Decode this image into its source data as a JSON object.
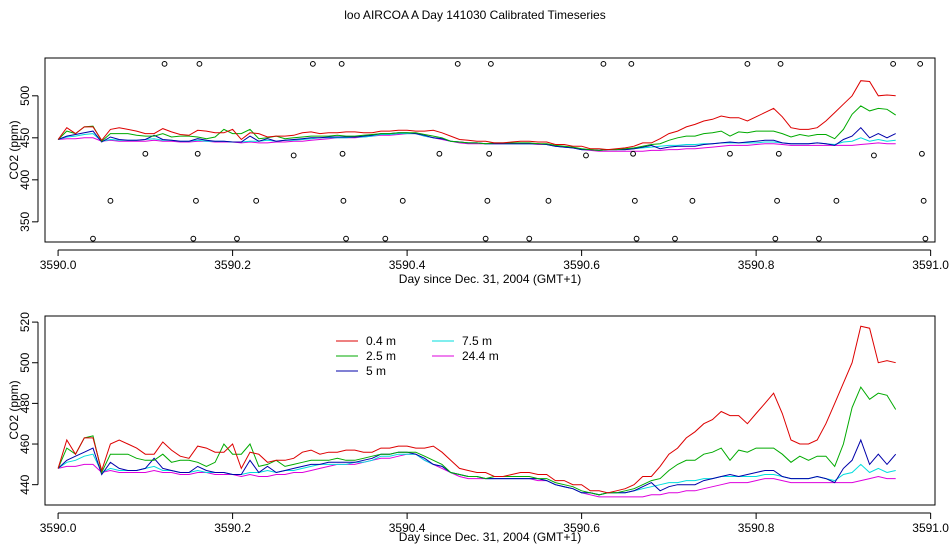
{
  "title": "loo AIRCOA A  Day 141030  Calibrated Timeseries",
  "chart_data": [
    {
      "type": "line",
      "panel": "top",
      "xlabel": "Day since Dec. 31, 2004 (GMT+1)",
      "ylabel": "CO2 (ppm)",
      "xlim": [
        3589.985,
        3591.005
      ],
      "ylim": [
        326,
        545
      ],
      "xticks": [
        3590.0,
        3590.2,
        3590.4,
        3590.6,
        3590.8,
        3591.0
      ],
      "xtick_labels": [
        "3590.0",
        "3590.2",
        "3590.4",
        "3590.6",
        "3590.8",
        "3591.0"
      ],
      "yticks": [
        350,
        400,
        450,
        500
      ],
      "ytick_labels": [
        "350",
        "400",
        "450",
        "500"
      ],
      "series_ref": "shared",
      "markers": {
        "style": "open-circle",
        "points": [
          {
            "x": 3590.04,
            "y": 330
          },
          {
            "x": 3590.06,
            "y": 375
          },
          {
            "x": 3590.1,
            "y": 431
          },
          {
            "x": 3590.122,
            "y": 538
          },
          {
            "x": 3590.155,
            "y": 330
          },
          {
            "x": 3590.158,
            "y": 375
          },
          {
            "x": 3590.16,
            "y": 431
          },
          {
            "x": 3590.162,
            "y": 538
          },
          {
            "x": 3590.205,
            "y": 330
          },
          {
            "x": 3590.227,
            "y": 375
          },
          {
            "x": 3590.27,
            "y": 429
          },
          {
            "x": 3590.292,
            "y": 538
          },
          {
            "x": 3590.325,
            "y": 538
          },
          {
            "x": 3590.326,
            "y": 431
          },
          {
            "x": 3590.327,
            "y": 375
          },
          {
            "x": 3590.33,
            "y": 330
          },
          {
            "x": 3590.375,
            "y": 330
          },
          {
            "x": 3590.395,
            "y": 375
          },
          {
            "x": 3590.437,
            "y": 431
          },
          {
            "x": 3590.458,
            "y": 538
          },
          {
            "x": 3590.49,
            "y": 330
          },
          {
            "x": 3590.492,
            "y": 375
          },
          {
            "x": 3590.494,
            "y": 431
          },
          {
            "x": 3590.496,
            "y": 538
          },
          {
            "x": 3590.54,
            "y": 330
          },
          {
            "x": 3590.562,
            "y": 375
          },
          {
            "x": 3590.605,
            "y": 429
          },
          {
            "x": 3590.625,
            "y": 538
          },
          {
            "x": 3590.657,
            "y": 538
          },
          {
            "x": 3590.659,
            "y": 431
          },
          {
            "x": 3590.661,
            "y": 375
          },
          {
            "x": 3590.663,
            "y": 330
          },
          {
            "x": 3590.707,
            "y": 330
          },
          {
            "x": 3590.727,
            "y": 375
          },
          {
            "x": 3590.77,
            "y": 431
          },
          {
            "x": 3590.79,
            "y": 538
          },
          {
            "x": 3590.822,
            "y": 330
          },
          {
            "x": 3590.824,
            "y": 375
          },
          {
            "x": 3590.826,
            "y": 431
          },
          {
            "x": 3590.828,
            "y": 538
          },
          {
            "x": 3590.872,
            "y": 330
          },
          {
            "x": 3590.892,
            "y": 375
          },
          {
            "x": 3590.935,
            "y": 429
          },
          {
            "x": 3590.957,
            "y": 538
          },
          {
            "x": 3590.988,
            "y": 538
          },
          {
            "x": 3590.99,
            "y": 431
          },
          {
            "x": 3590.992,
            "y": 375
          },
          {
            "x": 3590.994,
            "y": 330
          }
        ]
      }
    },
    {
      "type": "line",
      "panel": "bottom",
      "xlabel": "Day since Dec. 31, 2004 (GMT+1)",
      "ylabel": "CO2 (ppm)",
      "xlim": [
        3589.985,
        3591.005
      ],
      "ylim": [
        430,
        523
      ],
      "xticks": [
        3590.0,
        3590.2,
        3590.4,
        3590.6,
        3590.8,
        3591.0
      ],
      "xtick_labels": [
        "3590.0",
        "3590.2",
        "3590.4",
        "3590.6",
        "3590.8",
        "3591.0"
      ],
      "yticks": [
        440,
        460,
        480,
        500,
        520
      ],
      "ytick_labels": [
        "440",
        "460",
        "480",
        "500",
        "520"
      ],
      "legend": {
        "position": "top-left-inside",
        "entries": [
          {
            "name": "0.4 m",
            "color": "#dd0000"
          },
          {
            "name": "2.5 m",
            "color": "#00aa00"
          },
          {
            "name": "5 m",
            "color": "#0000aa"
          },
          {
            "name": "7.5 m",
            "color": "#00dddd"
          },
          {
            "name": "24.4 m",
            "color": "#dd00dd"
          }
        ]
      },
      "series_ref": "shared"
    }
  ],
  "series": {
    "x_start": 3590.0,
    "x_step": 0.01,
    "lines": [
      {
        "name": "0.4 m",
        "color": "#dd0000",
        "values": [
          448,
          462,
          455,
          463,
          463,
          447,
          460,
          462,
          460,
          458,
          455,
          455,
          461,
          457,
          454,
          453,
          459,
          458,
          456,
          456,
          460,
          448,
          456,
          455,
          451,
          452,
          452,
          453,
          456,
          457,
          455,
          456,
          456,
          457,
          457,
          456,
          456,
          458,
          458,
          459,
          459,
          458,
          458,
          459,
          456,
          452,
          448,
          447,
          446,
          446,
          444,
          444,
          445,
          446,
          446,
          445,
          445,
          442,
          442,
          440,
          440,
          437,
          437,
          436,
          437,
          438,
          440,
          444,
          444,
          449,
          455,
          458,
          463,
          466,
          470,
          472,
          476,
          474,
          474,
          470,
          475,
          480,
          485,
          475,
          462,
          460,
          460,
          462,
          470,
          480,
          490,
          500,
          518,
          517,
          500,
          501,
          500
        ]
      },
      {
        "name": "2.5 m",
        "color": "#00aa00",
        "values": [
          448,
          458,
          455,
          463,
          464,
          446,
          455,
          455,
          455,
          453,
          452,
          452,
          455,
          451,
          452,
          452,
          451,
          449,
          451,
          460,
          455,
          455,
          460,
          449,
          450,
          452,
          449,
          450,
          451,
          452,
          452,
          452,
          453,
          452,
          452,
          453,
          454,
          455,
          455,
          456,
          456,
          456,
          454,
          452,
          450,
          446,
          445,
          444,
          444,
          443,
          444,
          444,
          444,
          444,
          444,
          443,
          443,
          441,
          440,
          439,
          437,
          436,
          435,
          436,
          436,
          437,
          438,
          440,
          442,
          443,
          447,
          450,
          452,
          452,
          455,
          456,
          458,
          452,
          457,
          456,
          458,
          458,
          458,
          455,
          451,
          454,
          452,
          454,
          454,
          449,
          460,
          478,
          488,
          482,
          485,
          484,
          477
        ]
      },
      {
        "name": "5 m",
        "color": "#0000aa",
        "values": [
          448,
          452,
          454,
          456,
          458,
          445,
          451,
          448,
          447,
          447,
          448,
          453,
          448,
          447,
          446,
          446,
          449,
          447,
          446,
          446,
          445,
          445,
          452,
          446,
          449,
          446,
          447,
          448,
          449,
          450,
          450,
          451,
          451,
          451,
          451,
          452,
          453,
          455,
          455,
          456,
          456,
          455,
          453,
          450,
          449,
          446,
          445,
          444,
          444,
          443,
          443,
          443,
          443,
          443,
          443,
          443,
          442,
          440,
          439,
          438,
          436,
          436,
          435,
          436,
          436,
          436,
          437,
          439,
          441,
          437,
          439,
          440,
          440,
          440,
          442,
          443,
          444,
          445,
          444,
          445,
          446,
          447,
          447,
          444,
          443,
          443,
          443,
          444,
          443,
          441,
          448,
          452,
          462,
          450,
          455,
          450,
          455
        ]
      },
      {
        "name": "7.5 m",
        "color": "#00dddd",
        "values": [
          448,
          451,
          452,
          454,
          455,
          446,
          448,
          447,
          447,
          447,
          448,
          449,
          447,
          447,
          446,
          446,
          447,
          446,
          446,
          446,
          445,
          445,
          446,
          446,
          447,
          446,
          447,
          447,
          448,
          449,
          450,
          450,
          450,
          450,
          451,
          451,
          452,
          454,
          454,
          455,
          455,
          455,
          452,
          450,
          449,
          446,
          445,
          444,
          444,
          443,
          443,
          443,
          443,
          443,
          443,
          443,
          442,
          440,
          439,
          438,
          436,
          436,
          435,
          436,
          436,
          436,
          437,
          438,
          439,
          440,
          441,
          441,
          442,
          442,
          443,
          443,
          444,
          444,
          444,
          444,
          444,
          445,
          445,
          444,
          443,
          443,
          443,
          444,
          443,
          442,
          445,
          446,
          450,
          446,
          448,
          446,
          447
        ]
      },
      {
        "name": "24.4 m",
        "color": "#dd00dd",
        "values": [
          448,
          449,
          449,
          450,
          450,
          446,
          447,
          446,
          446,
          446,
          446,
          447,
          446,
          446,
          445,
          445,
          446,
          446,
          445,
          445,
          445,
          444,
          445,
          444,
          444,
          445,
          445,
          446,
          446,
          447,
          448,
          449,
          450,
          450,
          450,
          451,
          452,
          453,
          453,
          454,
          455,
          455,
          452,
          450,
          448,
          446,
          444,
          443,
          443,
          443,
          443,
          443,
          443,
          443,
          443,
          442,
          442,
          440,
          439,
          438,
          436,
          435,
          434,
          434,
          434,
          434,
          434,
          434,
          435,
          435,
          436,
          436,
          437,
          437,
          438,
          439,
          440,
          441,
          441,
          441,
          442,
          443,
          443,
          442,
          441,
          441,
          441,
          441,
          441,
          441,
          441,
          441,
          442,
          443,
          444,
          443,
          443
        ]
      }
    ]
  }
}
